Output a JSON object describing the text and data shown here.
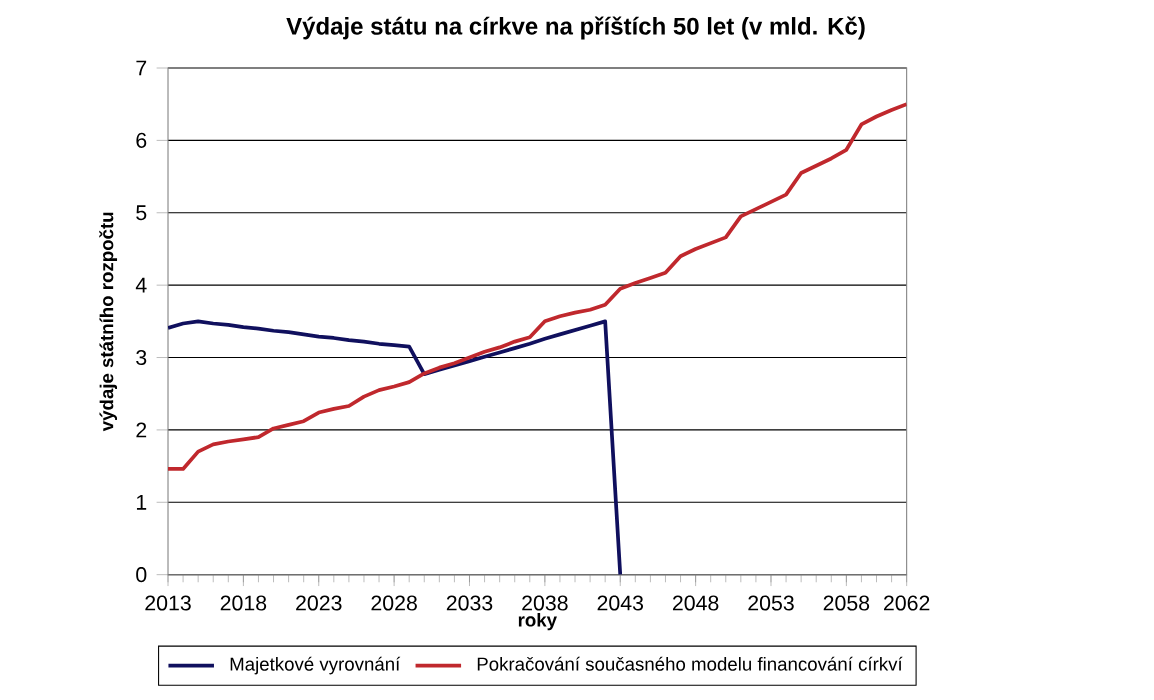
{
  "chart_data": {
    "type": "line",
    "title": "Výdaje státu na církve na příštích 50 let (v mld. Kč)",
    "xlabel": "roky",
    "ylabel": "výdaje státního rozpočtu",
    "x": [
      2013,
      2014,
      2015,
      2016,
      2017,
      2018,
      2019,
      2020,
      2021,
      2022,
      2023,
      2024,
      2025,
      2026,
      2027,
      2028,
      2029,
      2030,
      2031,
      2032,
      2033,
      2034,
      2035,
      2036,
      2037,
      2038,
      2039,
      2040,
      2041,
      2042,
      2043,
      2044,
      2045,
      2046,
      2047,
      2048,
      2049,
      2050,
      2051,
      2052,
      2053,
      2054,
      2055,
      2056,
      2057,
      2058,
      2059,
      2060,
      2061,
      2062
    ],
    "series": [
      {
        "name": "Majetkové vyrovnání",
        "color": "#10105e",
        "values": [
          3.41,
          3.47,
          3.5,
          3.47,
          3.45,
          3.42,
          3.4,
          3.37,
          3.35,
          3.32,
          3.29,
          3.27,
          3.24,
          3.22,
          3.19,
          3.17,
          3.15,
          2.77,
          2.83,
          2.89,
          2.95,
          3.01,
          3.07,
          3.13,
          3.19,
          3.26,
          3.32,
          3.38,
          3.44,
          3.5,
          0,
          null,
          null,
          null,
          null,
          null,
          null,
          null,
          null,
          null,
          null,
          null,
          null,
          null,
          null,
          null,
          null,
          null,
          null,
          null
        ]
      },
      {
        "name": "Pokračování současného modelu financování církví",
        "color": "#c0282d",
        "values": [
          1.46,
          1.46,
          1.7,
          1.8,
          1.84,
          1.87,
          1.9,
          2.02,
          2.07,
          2.12,
          2.24,
          2.29,
          2.33,
          2.46,
          2.55,
          2.6,
          2.66,
          2.78,
          2.86,
          2.92,
          3.0,
          3.08,
          3.14,
          3.22,
          3.28,
          3.5,
          3.57,
          3.62,
          3.66,
          3.73,
          3.95,
          4.03,
          4.1,
          4.17,
          4.4,
          4.5,
          4.58,
          4.66,
          4.95,
          5.05,
          5.15,
          5.25,
          5.55,
          5.65,
          5.75,
          5.87,
          6.22,
          6.33,
          6.42,
          6.5
        ]
      }
    ],
    "xlim": [
      2013,
      2062
    ],
    "xticks": [
      2013,
      2018,
      2023,
      2028,
      2033,
      2038,
      2043,
      2048,
      2053,
      2058,
      2062
    ],
    "ylim": [
      0,
      7
    ],
    "yticks": [
      0,
      1,
      2,
      3,
      4,
      5,
      6,
      7
    ],
    "grid": "y",
    "legend": "bottom",
    "marker": "none",
    "line_style": "solid"
  }
}
